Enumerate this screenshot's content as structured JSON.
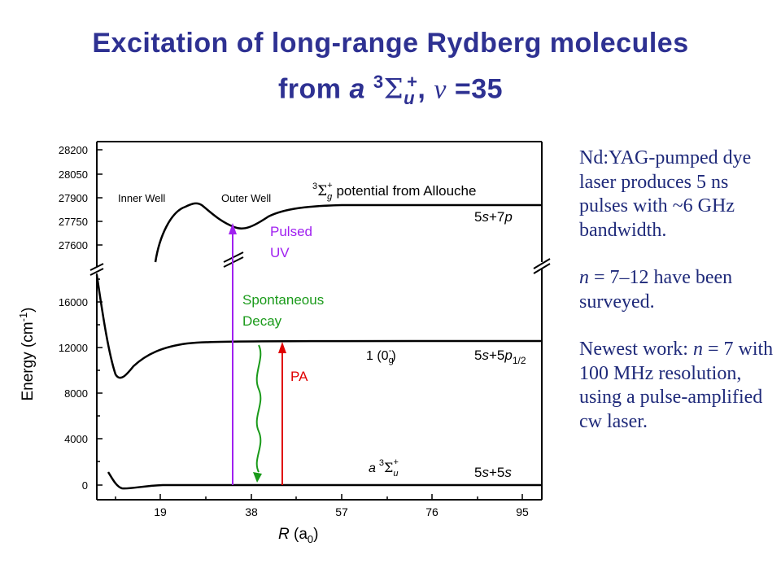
{
  "title": {
    "line1": "Excitation of long-range Rydberg molecules",
    "line2_prefix": "from ",
    "line2_a": "a",
    "line2_sup3": "3",
    "line2_sigma": "Σ",
    "line2_sub_u": "u",
    "line2_sup_plus": "+",
    "line2_comma": ", ",
    "line2_nu": "ν",
    "line2_eq": " =35"
  },
  "chart_data": {
    "type": "potential-energy-diagram",
    "x_axis": {
      "label_main": "R",
      "label_paren": " (a",
      "label_sub": "0",
      "label_close": ")",
      "ticks": [
        "19",
        "38",
        "57",
        "76",
        "95"
      ],
      "range": [
        5,
        100
      ]
    },
    "y_axis": {
      "label_main": "Energy (cm",
      "label_sup": "-1",
      "label_close": ")",
      "lower_ticks": [
        "0",
        "4000",
        "8000",
        "12000",
        "16000"
      ],
      "upper_ticks": [
        "27600",
        "27750",
        "27900",
        "28050",
        "28200"
      ]
    },
    "curve_labels": {
      "inner_well": "Inner Well",
      "outer_well": "Outer Well",
      "upper_state_sup": "3",
      "upper_state_sigma": "Σ",
      "upper_state_sub": "g",
      "upper_state_plus": "+",
      "upper_state_text": " potential from Allouche",
      "asym_upper_a": "5",
      "asym_upper_b": "s",
      "asym_upper_c": "+7",
      "asym_upper_d": "p",
      "middle_state_a": "1 (0",
      "middle_state_sub": "g",
      "middle_state_sup": "-",
      "middle_state_close": ")",
      "asym_middle_a": "5",
      "asym_middle_b": "s",
      "asym_middle_c": "+5",
      "asym_middle_d": "p",
      "asym_middle_sub": "1/2",
      "lower_state_a": "a",
      "lower_state_sup": "3",
      "lower_state_sigma": "Σ",
      "lower_state_sub": "u",
      "lower_state_plus": "+",
      "asym_lower_a": "5",
      "asym_lower_b": "s",
      "asym_lower_c": "+5",
      "asym_lower_d": "s"
    },
    "transitions": {
      "pulsed_uv_line1": "Pulsed",
      "pulsed_uv_line2": "UV",
      "spontaneous_line1": "Spontaneous",
      "spontaneous_line2": "Decay",
      "pa": "PA"
    },
    "asymptotes_cm1": {
      "lower": 0,
      "middle": 12600,
      "upper": 27830
    },
    "colors": {
      "pulsed_uv": "#a020f0",
      "spontaneous": "#1a9a1a",
      "pa": "#e00000",
      "title": "#2e3192"
    }
  },
  "notes": {
    "p1": "Nd:YAG-pumped dye laser produces 5 ns pulses with ~6 GHz bandwidth.",
    "p2_n": "n",
    "p2_rest": " = 7–12 have been surveyed.",
    "p3_a": "Newest work: ",
    "p3_n": "n",
    "p3_b": " = 7 with 100 MHz resolution, using a pulse-amplified cw laser."
  }
}
